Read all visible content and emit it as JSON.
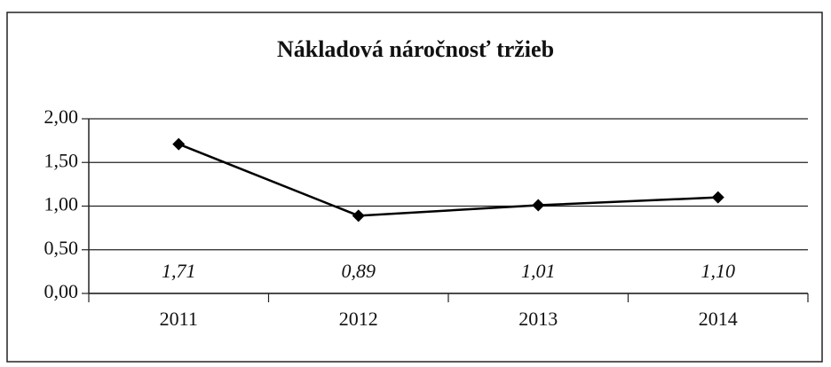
{
  "chart_data": {
    "type": "line",
    "title": "Nákladová náročnosť tržieb",
    "categories": [
      "2011",
      "2012",
      "2013",
      "2014"
    ],
    "values": [
      1.71,
      0.89,
      1.01,
      1.1
    ],
    "value_labels": [
      "1,71",
      "0,89",
      "1,01",
      "1,10"
    ],
    "color": "#000000",
    "ylim": [
      0,
      2
    ],
    "yticks": [
      {
        "value": 0,
        "label": "0,00"
      },
      {
        "value": 0.5,
        "label": "0,50"
      },
      {
        "value": 1,
        "label": "1,00"
      },
      {
        "value": 1.5,
        "label": "1,50"
      },
      {
        "value": 2,
        "label": "2,00"
      }
    ],
    "grid": true
  }
}
